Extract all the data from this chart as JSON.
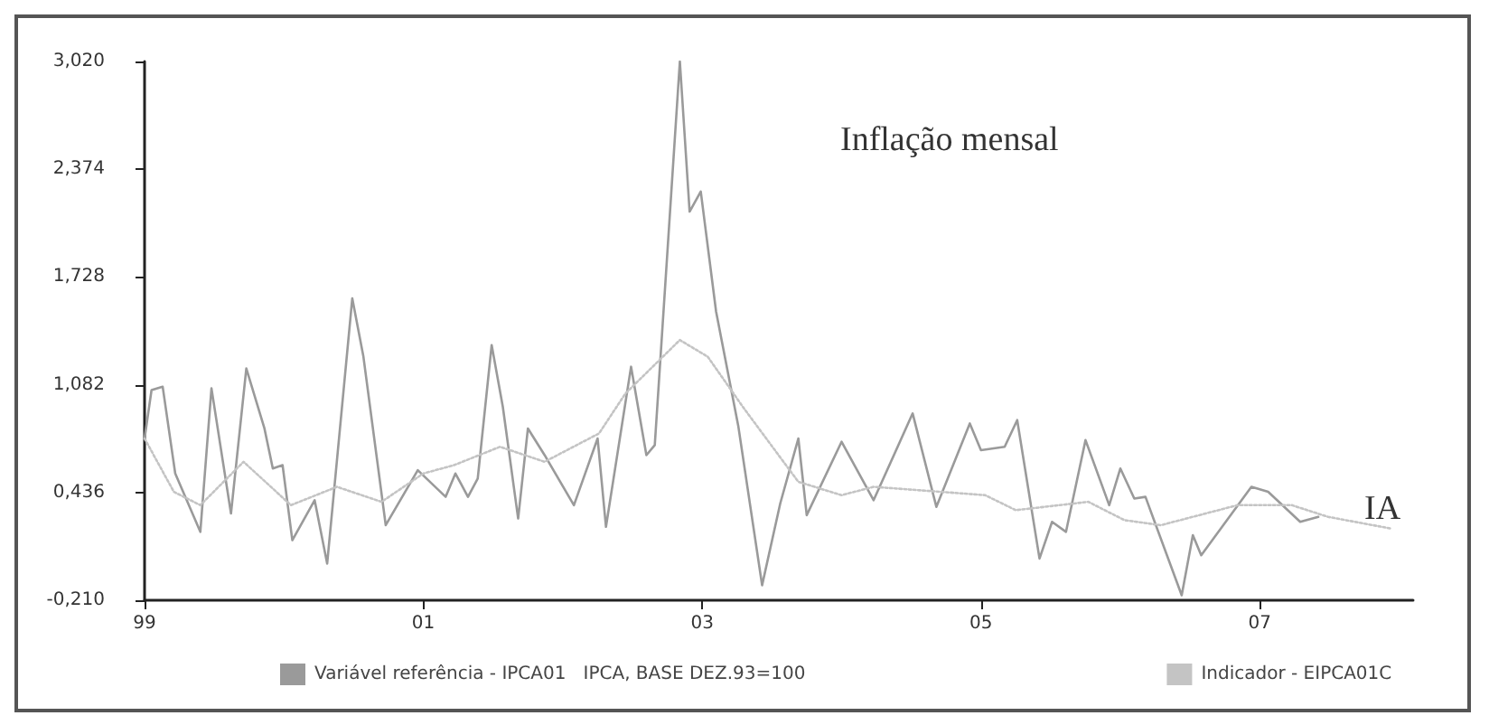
{
  "chart_data": {
    "type": "line",
    "annotations": [
      "Inflação mensal",
      "IA"
    ],
    "xlim": [
      1999,
      2008.1
    ],
    "xticks": [
      {
        "value": 1999,
        "label": "99"
      },
      {
        "value": 2001,
        "label": "01"
      },
      {
        "value": 2003,
        "label": "03"
      },
      {
        "value": 2005,
        "label": "05"
      },
      {
        "value": 2007,
        "label": "07"
      }
    ],
    "ylim": [
      -0.21,
      3.02
    ],
    "yticks": [
      {
        "value": -0.21,
        "label": "-0,210"
      },
      {
        "value": 0.436,
        "label": "0,436"
      },
      {
        "value": 1.082,
        "label": "1,082"
      },
      {
        "value": 1.728,
        "label": "1,728"
      },
      {
        "value": 2.374,
        "label": "2,374"
      },
      {
        "value": 3.02,
        "label": "3,020"
      }
    ],
    "grid": false,
    "legend": "bottom",
    "marker": "none",
    "series": [
      {
        "name": "Variável referência - IPCA01   IPCA, BASE DEZ.93=100",
        "color": "#9a9a9a",
        "line_style": "solid",
        "x": [
          1999.0,
          1999.05,
          1999.13,
          1999.22,
          1999.4,
          1999.48,
          1999.62,
          1999.73,
          1999.86,
          1999.92,
          1999.99,
          2000.06,
          2000.22,
          2000.31,
          2000.49,
          2000.57,
          2000.73,
          2000.96,
          2001.16,
          2001.23,
          2001.32,
          2001.39,
          2001.49,
          2001.57,
          2001.68,
          2001.75,
          2001.87,
          2002.08,
          2002.25,
          2002.31,
          2002.49,
          2002.6,
          2002.66,
          2002.84,
          2002.91,
          2002.99,
          2003.1,
          2003.26,
          2003.43,
          2003.56,
          2003.69,
          2003.75,
          2004.0,
          2004.23,
          2004.51,
          2004.68,
          2004.92,
          2005.0,
          2005.17,
          2005.26,
          2005.42,
          2005.51,
          2005.61,
          2005.75,
          2005.92,
          2006.0,
          2006.1,
          2006.18,
          2006.44,
          2006.52,
          2006.58,
          2006.94,
          2007.06,
          2007.29,
          2007.42
        ],
        "values": [
          0.76,
          1.05,
          1.07,
          0.55,
          0.2,
          1.06,
          0.31,
          1.18,
          0.82,
          0.58,
          0.6,
          0.15,
          0.39,
          0.01,
          1.6,
          1.25,
          0.24,
          0.57,
          0.41,
          0.55,
          0.41,
          0.52,
          1.32,
          0.95,
          0.28,
          0.82,
          0.66,
          0.36,
          0.76,
          0.23,
          1.19,
          0.66,
          0.72,
          3.02,
          2.12,
          2.24,
          1.52,
          0.83,
          -0.12,
          0.37,
          0.76,
          0.3,
          0.74,
          0.39,
          0.91,
          0.35,
          0.85,
          0.69,
          0.71,
          0.87,
          0.04,
          0.26,
          0.2,
          0.75,
          0.36,
          0.58,
          0.4,
          0.41,
          -0.18,
          0.18,
          0.06,
          0.47,
          0.44,
          0.26,
          0.29
        ]
      },
      {
        "name": "Indicador - EIPCA01C",
        "color": "#c4c4c4",
        "line_style": "dotted",
        "x": [
          1999.0,
          1999.21,
          1999.4,
          1999.71,
          2000.05,
          2000.38,
          2000.7,
          2001.0,
          2001.22,
          2001.55,
          2001.87,
          2002.26,
          2002.45,
          2002.84,
          2003.04,
          2003.3,
          2003.69,
          2004.0,
          2004.23,
          2005.03,
          2005.25,
          2005.77,
          2006.03,
          2006.29,
          2006.84,
          2007.23,
          2007.49,
          2007.94
        ],
        "values": [
          0.76,
          0.44,
          0.36,
          0.62,
          0.36,
          0.47,
          0.38,
          0.55,
          0.6,
          0.71,
          0.62,
          0.79,
          1.03,
          1.35,
          1.25,
          0.94,
          0.5,
          0.42,
          0.47,
          0.42,
          0.33,
          0.38,
          0.27,
          0.24,
          0.36,
          0.36,
          0.29,
          0.22
        ]
      }
    ]
  }
}
